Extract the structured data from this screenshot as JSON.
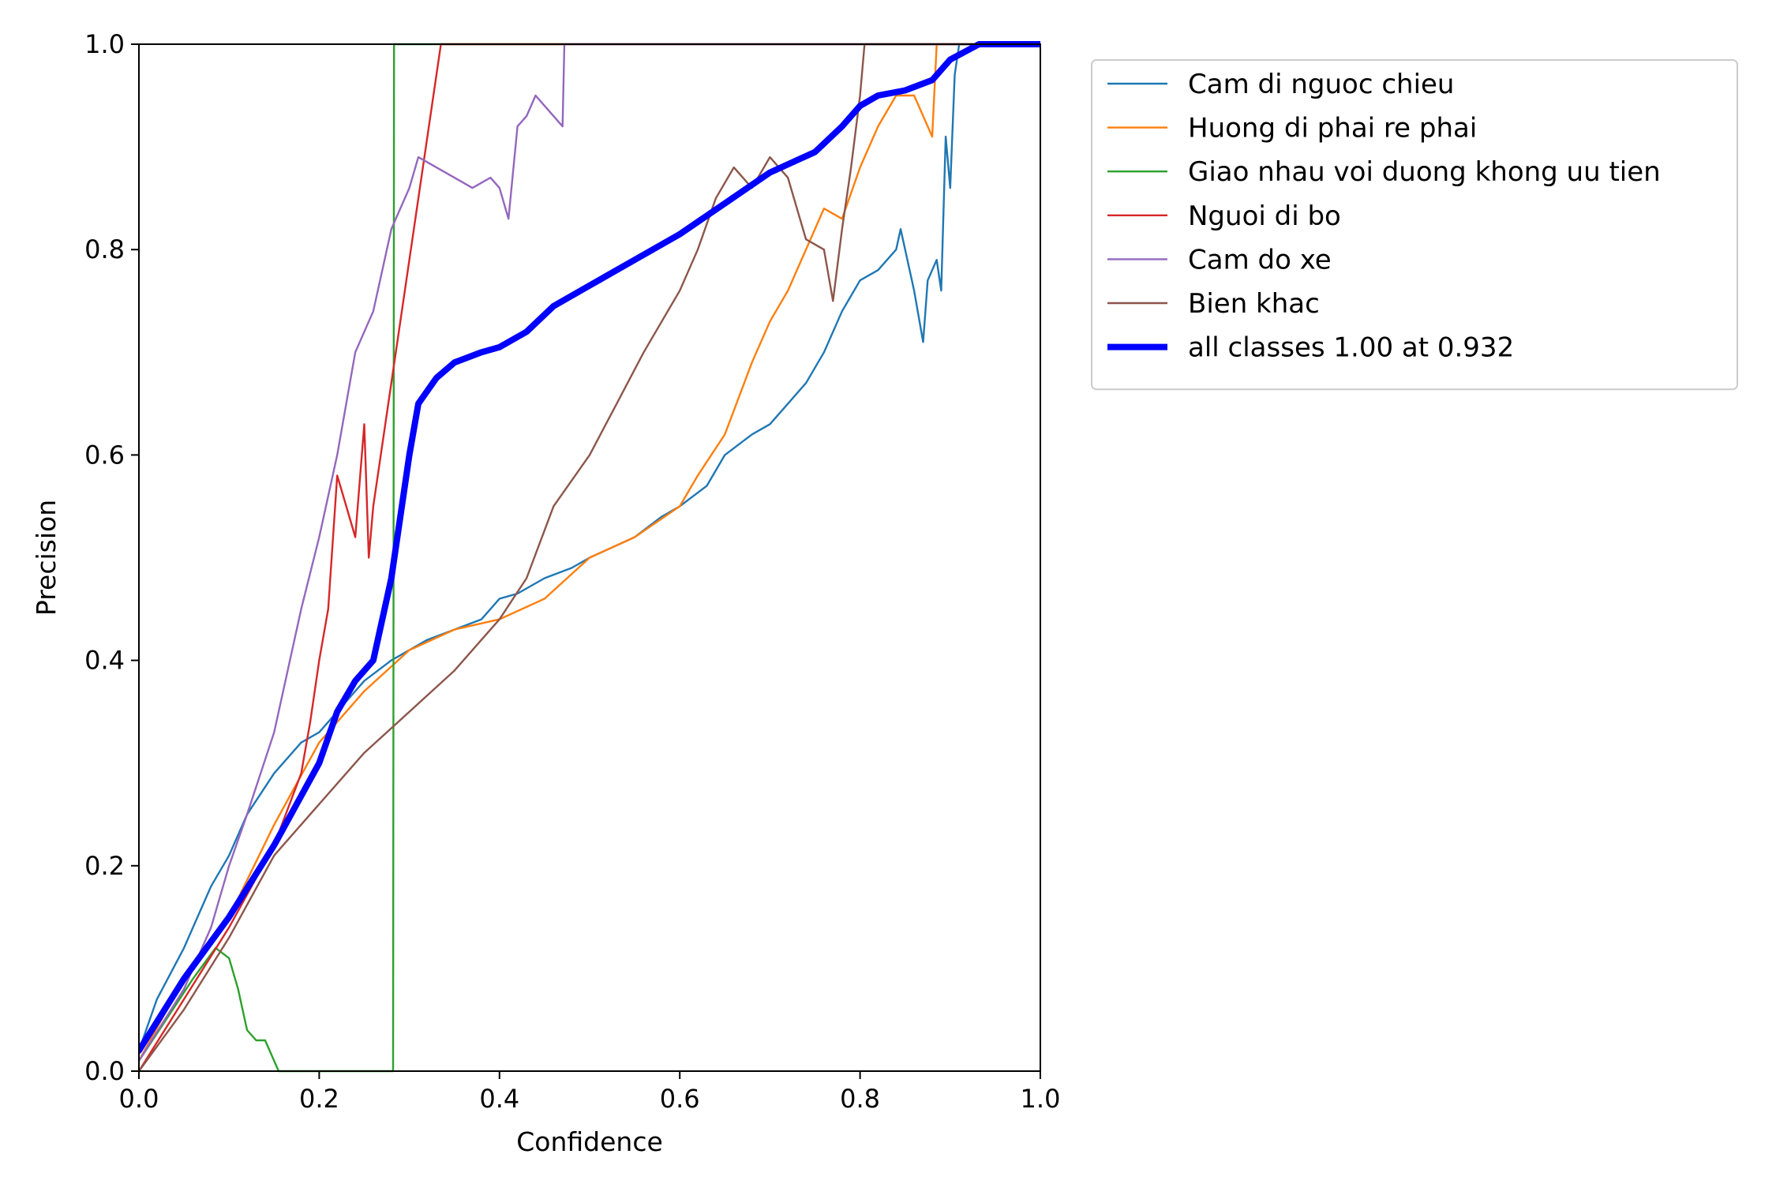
{
  "chart_data": {
    "type": "line",
    "title": "",
    "xlabel": "Confidence",
    "ylabel": "Precision",
    "xlim": [
      0,
      1
    ],
    "ylim": [
      0,
      1
    ],
    "xticks": [
      "0.0",
      "0.2",
      "0.4",
      "0.6",
      "0.8",
      "1.0"
    ],
    "yticks": [
      "0.0",
      "0.2",
      "0.4",
      "0.6",
      "0.8",
      "1.0"
    ],
    "grid": false,
    "legend_position": "outside-top-right",
    "series": [
      {
        "name": "Cam di nguoc chieu",
        "color": "#1f77b4",
        "points": [
          [
            0,
            0.02
          ],
          [
            0.02,
            0.07
          ],
          [
            0.05,
            0.12
          ],
          [
            0.08,
            0.18
          ],
          [
            0.1,
            0.21
          ],
          [
            0.12,
            0.25
          ],
          [
            0.15,
            0.29
          ],
          [
            0.18,
            0.32
          ],
          [
            0.2,
            0.33
          ],
          [
            0.22,
            0.35
          ],
          [
            0.25,
            0.38
          ],
          [
            0.28,
            0.4
          ],
          [
            0.3,
            0.41
          ],
          [
            0.32,
            0.42
          ],
          [
            0.35,
            0.43
          ],
          [
            0.38,
            0.44
          ],
          [
            0.4,
            0.46
          ],
          [
            0.42,
            0.465
          ],
          [
            0.45,
            0.48
          ],
          [
            0.48,
            0.49
          ],
          [
            0.5,
            0.5
          ],
          [
            0.55,
            0.52
          ],
          [
            0.58,
            0.54
          ],
          [
            0.6,
            0.55
          ],
          [
            0.63,
            0.57
          ],
          [
            0.65,
            0.6
          ],
          [
            0.68,
            0.62
          ],
          [
            0.7,
            0.63
          ],
          [
            0.72,
            0.65
          ],
          [
            0.74,
            0.67
          ],
          [
            0.76,
            0.7
          ],
          [
            0.78,
            0.74
          ],
          [
            0.8,
            0.77
          ],
          [
            0.82,
            0.78
          ],
          [
            0.84,
            0.8
          ],
          [
            0.845,
            0.82
          ],
          [
            0.86,
            0.76
          ],
          [
            0.87,
            0.71
          ],
          [
            0.875,
            0.77
          ],
          [
            0.885,
            0.79
          ],
          [
            0.89,
            0.76
          ],
          [
            0.895,
            0.91
          ],
          [
            0.9,
            0.86
          ],
          [
            0.905,
            0.97
          ],
          [
            0.91,
            1.0
          ],
          [
            1.0,
            1.0
          ]
        ]
      },
      {
        "name": "Huong di phai re phai",
        "color": "#ff7f0e",
        "points": [
          [
            0,
            0.01
          ],
          [
            0.05,
            0.09
          ],
          [
            0.1,
            0.15
          ],
          [
            0.15,
            0.24
          ],
          [
            0.2,
            0.32
          ],
          [
            0.25,
            0.37
          ],
          [
            0.3,
            0.41
          ],
          [
            0.35,
            0.43
          ],
          [
            0.4,
            0.44
          ],
          [
            0.45,
            0.46
          ],
          [
            0.5,
            0.5
          ],
          [
            0.55,
            0.52
          ],
          [
            0.6,
            0.55
          ],
          [
            0.62,
            0.58
          ],
          [
            0.65,
            0.62
          ],
          [
            0.68,
            0.69
          ],
          [
            0.7,
            0.73
          ],
          [
            0.72,
            0.76
          ],
          [
            0.74,
            0.8
          ],
          [
            0.76,
            0.84
          ],
          [
            0.78,
            0.83
          ],
          [
            0.8,
            0.88
          ],
          [
            0.82,
            0.92
          ],
          [
            0.84,
            0.95
          ],
          [
            0.86,
            0.95
          ],
          [
            0.88,
            0.91
          ],
          [
            0.885,
            1.0
          ],
          [
            1.0,
            1.0
          ]
        ]
      },
      {
        "name": "Giao nhau voi duong khong uu tien",
        "color": "#2ca02c",
        "points": [
          [
            0,
            0.01
          ],
          [
            0.03,
            0.05
          ],
          [
            0.06,
            0.09
          ],
          [
            0.085,
            0.12
          ],
          [
            0.1,
            0.11
          ],
          [
            0.11,
            0.08
          ],
          [
            0.12,
            0.04
          ],
          [
            0.13,
            0.03
          ],
          [
            0.14,
            0.03
          ],
          [
            0.155,
            0.0
          ],
          [
            0.282,
            0.0
          ],
          [
            0.283,
            1.0
          ],
          [
            1.0,
            1.0
          ]
        ]
      },
      {
        "name": "Nguoi di bo",
        "color": "#d62728",
        "points": [
          [
            0,
            0.0
          ],
          [
            0.05,
            0.07
          ],
          [
            0.1,
            0.14
          ],
          [
            0.15,
            0.22
          ],
          [
            0.18,
            0.29
          ],
          [
            0.19,
            0.34
          ],
          [
            0.2,
            0.4
          ],
          [
            0.21,
            0.45
          ],
          [
            0.22,
            0.58
          ],
          [
            0.23,
            0.55
          ],
          [
            0.24,
            0.52
          ],
          [
            0.25,
            0.63
          ],
          [
            0.255,
            0.5
          ],
          [
            0.26,
            0.55
          ],
          [
            0.335,
            1.0
          ],
          [
            1.0,
            1.0
          ]
        ]
      },
      {
        "name": "Cam do xe",
        "color": "#9467bd",
        "points": [
          [
            0,
            0.01
          ],
          [
            0.05,
            0.08
          ],
          [
            0.08,
            0.14
          ],
          [
            0.1,
            0.2
          ],
          [
            0.12,
            0.25
          ],
          [
            0.15,
            0.33
          ],
          [
            0.18,
            0.45
          ],
          [
            0.2,
            0.52
          ],
          [
            0.22,
            0.6
          ],
          [
            0.24,
            0.7
          ],
          [
            0.26,
            0.74
          ],
          [
            0.28,
            0.82
          ],
          [
            0.3,
            0.86
          ],
          [
            0.31,
            0.89
          ],
          [
            0.33,
            0.88
          ],
          [
            0.35,
            0.87
          ],
          [
            0.37,
            0.86
          ],
          [
            0.39,
            0.87
          ],
          [
            0.4,
            0.86
          ],
          [
            0.41,
            0.83
          ],
          [
            0.42,
            0.92
          ],
          [
            0.43,
            0.93
          ],
          [
            0.44,
            0.95
          ],
          [
            0.46,
            0.93
          ],
          [
            0.47,
            0.92
          ],
          [
            0.472,
            1.0
          ],
          [
            1.0,
            1.0
          ]
        ]
      },
      {
        "name": "Bien khac",
        "color": "#8c564b",
        "points": [
          [
            0,
            0.0
          ],
          [
            0.05,
            0.06
          ],
          [
            0.1,
            0.13
          ],
          [
            0.15,
            0.21
          ],
          [
            0.2,
            0.26
          ],
          [
            0.25,
            0.31
          ],
          [
            0.3,
            0.35
          ],
          [
            0.35,
            0.39
          ],
          [
            0.4,
            0.44
          ],
          [
            0.43,
            0.48
          ],
          [
            0.46,
            0.55
          ],
          [
            0.5,
            0.6
          ],
          [
            0.53,
            0.65
          ],
          [
            0.56,
            0.7
          ],
          [
            0.6,
            0.76
          ],
          [
            0.62,
            0.8
          ],
          [
            0.64,
            0.85
          ],
          [
            0.66,
            0.88
          ],
          [
            0.68,
            0.86
          ],
          [
            0.7,
            0.89
          ],
          [
            0.72,
            0.87
          ],
          [
            0.74,
            0.81
          ],
          [
            0.76,
            0.8
          ],
          [
            0.77,
            0.75
          ],
          [
            0.78,
            0.82
          ],
          [
            0.79,
            0.88
          ],
          [
            0.8,
            0.95
          ],
          [
            0.805,
            1.0
          ],
          [
            1.0,
            1.0
          ]
        ]
      },
      {
        "name": "all classes 1.00 at 0.932",
        "color": "#0000ff",
        "thick": true,
        "points": [
          [
            0,
            0.02
          ],
          [
            0.05,
            0.09
          ],
          [
            0.1,
            0.15
          ],
          [
            0.15,
            0.22
          ],
          [
            0.2,
            0.3
          ],
          [
            0.22,
            0.35
          ],
          [
            0.24,
            0.38
          ],
          [
            0.26,
            0.4
          ],
          [
            0.28,
            0.48
          ],
          [
            0.3,
            0.6
          ],
          [
            0.31,
            0.65
          ],
          [
            0.33,
            0.675
          ],
          [
            0.35,
            0.69
          ],
          [
            0.38,
            0.7
          ],
          [
            0.4,
            0.705
          ],
          [
            0.43,
            0.72
          ],
          [
            0.46,
            0.745
          ],
          [
            0.5,
            0.765
          ],
          [
            0.55,
            0.79
          ],
          [
            0.6,
            0.815
          ],
          [
            0.65,
            0.845
          ],
          [
            0.7,
            0.875
          ],
          [
            0.75,
            0.895
          ],
          [
            0.78,
            0.92
          ],
          [
            0.8,
            0.94
          ],
          [
            0.82,
            0.95
          ],
          [
            0.85,
            0.955
          ],
          [
            0.88,
            0.965
          ],
          [
            0.9,
            0.985
          ],
          [
            0.932,
            1.0
          ],
          [
            1.0,
            1.0
          ]
        ]
      }
    ]
  }
}
